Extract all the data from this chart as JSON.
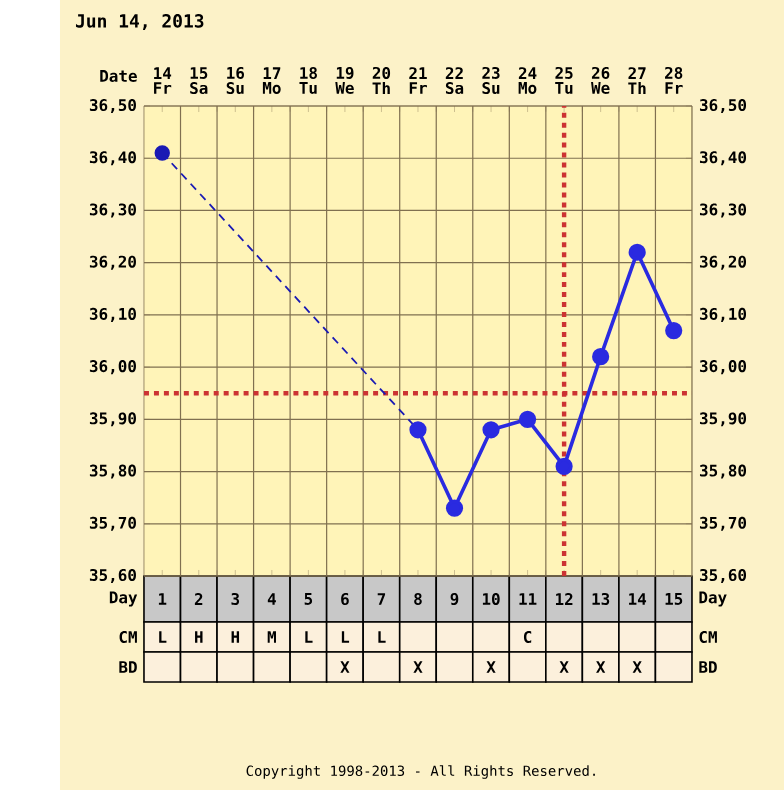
{
  "chart_data": {
    "type": "line",
    "title": "Jun 14, 2013",
    "categories": [
      "14",
      "15",
      "16",
      "17",
      "18",
      "19",
      "20",
      "21",
      "22",
      "23",
      "24",
      "25",
      "26",
      "27",
      "28"
    ],
    "series": [
      {
        "color": "#1a1ab4",
        "line_style": "dashed",
        "values": [
          36.41,
          null,
          null,
          null,
          null,
          null,
          null,
          35.88,
          null,
          null,
          null,
          null,
          null,
          null,
          null
        ]
      },
      {
        "color": "#2a2ae0",
        "values": [
          null,
          null,
          null,
          null,
          null,
          null,
          null,
          35.88,
          35.73,
          35.88,
          35.9,
          35.81,
          36.02,
          36.22,
          36.07
        ]
      }
    ],
    "marker": "circle",
    "ylim": [
      35.6,
      36.5
    ],
    "yticks": [
      {
        "value": 35.6,
        "label": "35,60"
      },
      {
        "value": 35.7,
        "label": "35,70"
      },
      {
        "value": 35.8,
        "label": "35,80"
      },
      {
        "value": 35.9,
        "label": "35,90"
      },
      {
        "value": 36.0,
        "label": "36,00"
      },
      {
        "value": 36.1,
        "label": "36,10"
      },
      {
        "value": 36.2,
        "label": "36,20"
      },
      {
        "value": 36.3,
        "label": "36,30"
      },
      {
        "value": 36.4,
        "label": "36,40"
      },
      {
        "value": 36.5,
        "label": "36,50"
      }
    ],
    "y2lim": [
      35.6,
      36.5
    ],
    "y2ticks": [
      {
        "value": 35.6,
        "label": "35,60"
      },
      {
        "value": 35.7,
        "label": "35,70"
      },
      {
        "value": 35.8,
        "label": "35,80"
      },
      {
        "value": 35.9,
        "label": "35,90"
      },
      {
        "value": 36.0,
        "label": "36,00"
      },
      {
        "value": 36.1,
        "label": "36,10"
      },
      {
        "value": 36.2,
        "label": "36,20"
      },
      {
        "value": 36.3,
        "label": "36,30"
      },
      {
        "value": 36.4,
        "label": "36,40"
      },
      {
        "value": 36.5,
        "label": "36,50"
      }
    ],
    "grid": true,
    "ref_lines": [
      {
        "axis": "y",
        "value": 35.95,
        "color": "#cc3333",
        "line_style": "dotted"
      },
      {
        "axis": "x",
        "value": "25",
        "color": "#cc3333",
        "line_style": "dotted"
      }
    ],
    "annotations": [
      "Date",
      "Day",
      "CM",
      "BD",
      "Day",
      "CM",
      "BD",
      "Copyright 1998-2013 - All Rights Reserved.",
      "Fr",
      "Sa",
      "Su",
      "Mo",
      "Tu",
      "We",
      "Th",
      "Fr",
      "Sa",
      "Su",
      "Mo",
      "Tu",
      "We",
      "Th",
      "Fr",
      "1",
      "2",
      "3",
      "4",
      "5",
      "6",
      "7",
      "8",
      "9",
      "10",
      "11",
      "12",
      "13",
      "14",
      "15",
      "L",
      "H",
      "H",
      "M",
      "L",
      "L",
      "L",
      "C",
      "X",
      "X",
      "X",
      "X",
      "X",
      "X"
    ]
  }
}
